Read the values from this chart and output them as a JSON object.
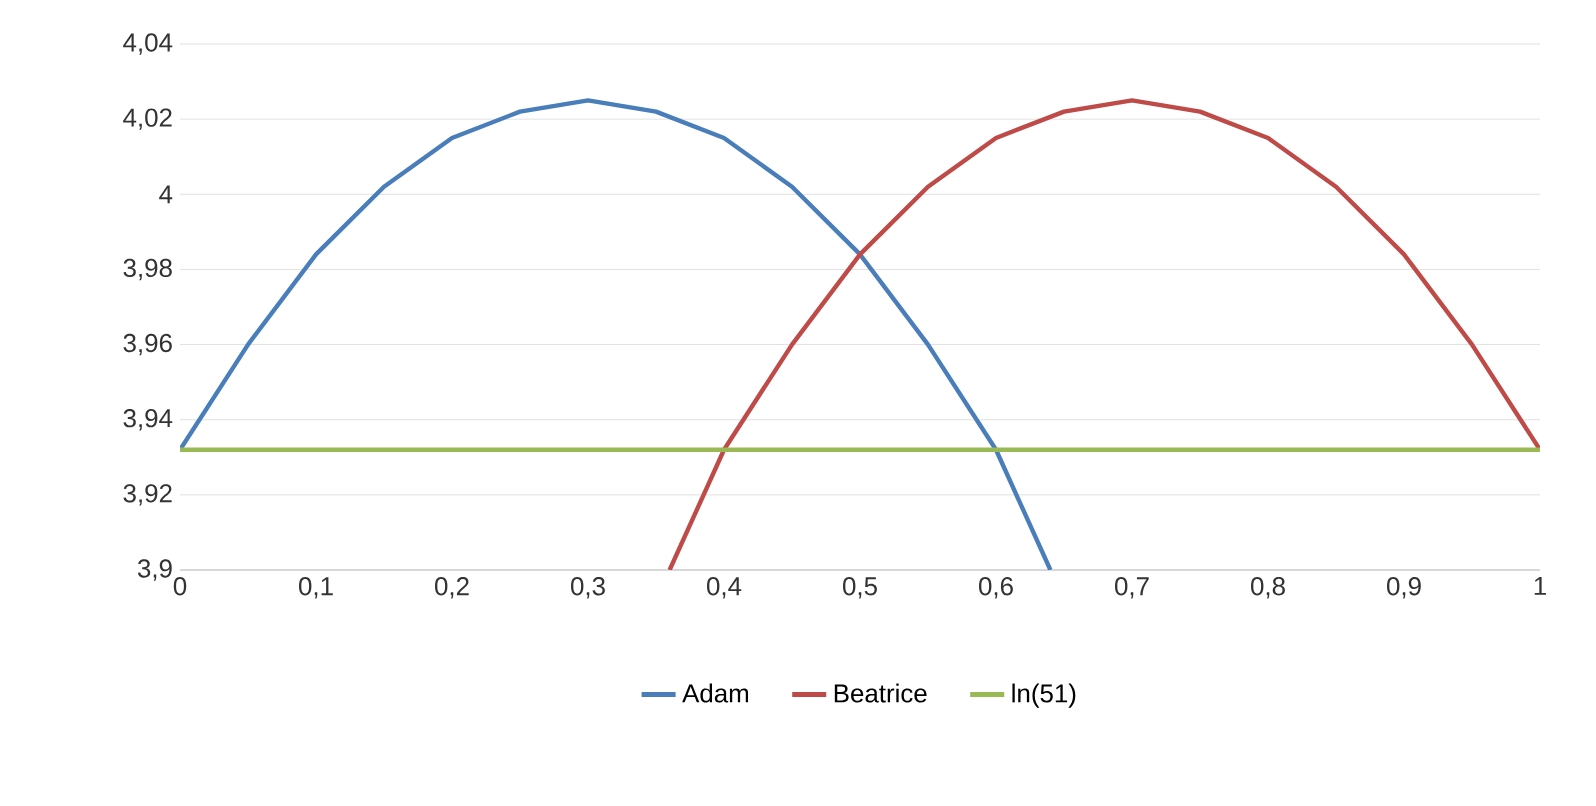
{
  "chart_data": {
    "type": "line",
    "xlim": [
      0,
      1
    ],
    "ylim": [
      3.9,
      4.04
    ],
    "xticks": [
      0,
      {
        "value": 0.1,
        "label": "0,1"
      },
      {
        "value": 0.2,
        "label": "0,2"
      },
      {
        "value": 0.3,
        "label": "0,3"
      },
      {
        "value": 0.4,
        "label": "0,4"
      },
      {
        "value": 0.5,
        "label": "0,5"
      },
      {
        "value": 0.6,
        "label": "0,6"
      },
      {
        "value": 0.7,
        "label": "0,7"
      },
      {
        "value": 0.8,
        "label": "0,8"
      },
      {
        "value": 0.9,
        "label": "0,9"
      },
      1
    ],
    "yticks": [
      {
        "value": 3.9,
        "label": "3,9"
      },
      {
        "value": 3.92,
        "label": "3,92"
      },
      {
        "value": 3.94,
        "label": "3,94"
      },
      {
        "value": 3.96,
        "label": "3,96"
      },
      {
        "value": 3.98,
        "label": "3,98"
      },
      4,
      {
        "value": 4.02,
        "label": "4,02"
      },
      {
        "value": 4.04,
        "label": "4,04"
      }
    ],
    "grid": "y",
    "legend": "bottom",
    "marker": "none",
    "line_style": "solid",
    "series": [
      {
        "name": "Adam",
        "color": "#4a7ebb",
        "x": [
          0,
          0.05,
          0.1,
          0.15,
          0.2,
          0.25,
          0.3,
          0.35,
          0.4,
          0.45,
          0.5,
          0.55,
          0.6,
          0.64
        ],
        "values": [
          3.932,
          3.96,
          3.984,
          4.002,
          4.015,
          4.022,
          4.025,
          4.022,
          4.015,
          4.002,
          3.984,
          3.96,
          3.932,
          3.9
        ]
      },
      {
        "name": "Beatrice",
        "color": "#be4b48",
        "x": [
          0.36,
          0.4,
          0.45,
          0.5,
          0.55,
          0.6,
          0.65,
          0.7,
          0.75,
          0.8,
          0.85,
          0.9,
          0.95,
          1
        ],
        "values": [
          3.9,
          3.932,
          3.96,
          3.984,
          4.002,
          4.015,
          4.022,
          4.025,
          4.022,
          4.015,
          4.002,
          3.984,
          3.96,
          3.932
        ]
      },
      {
        "name": "ln(51)",
        "color": "#98b954",
        "x": [
          0,
          1
        ],
        "values": [
          3.932,
          3.932
        ]
      }
    ]
  }
}
